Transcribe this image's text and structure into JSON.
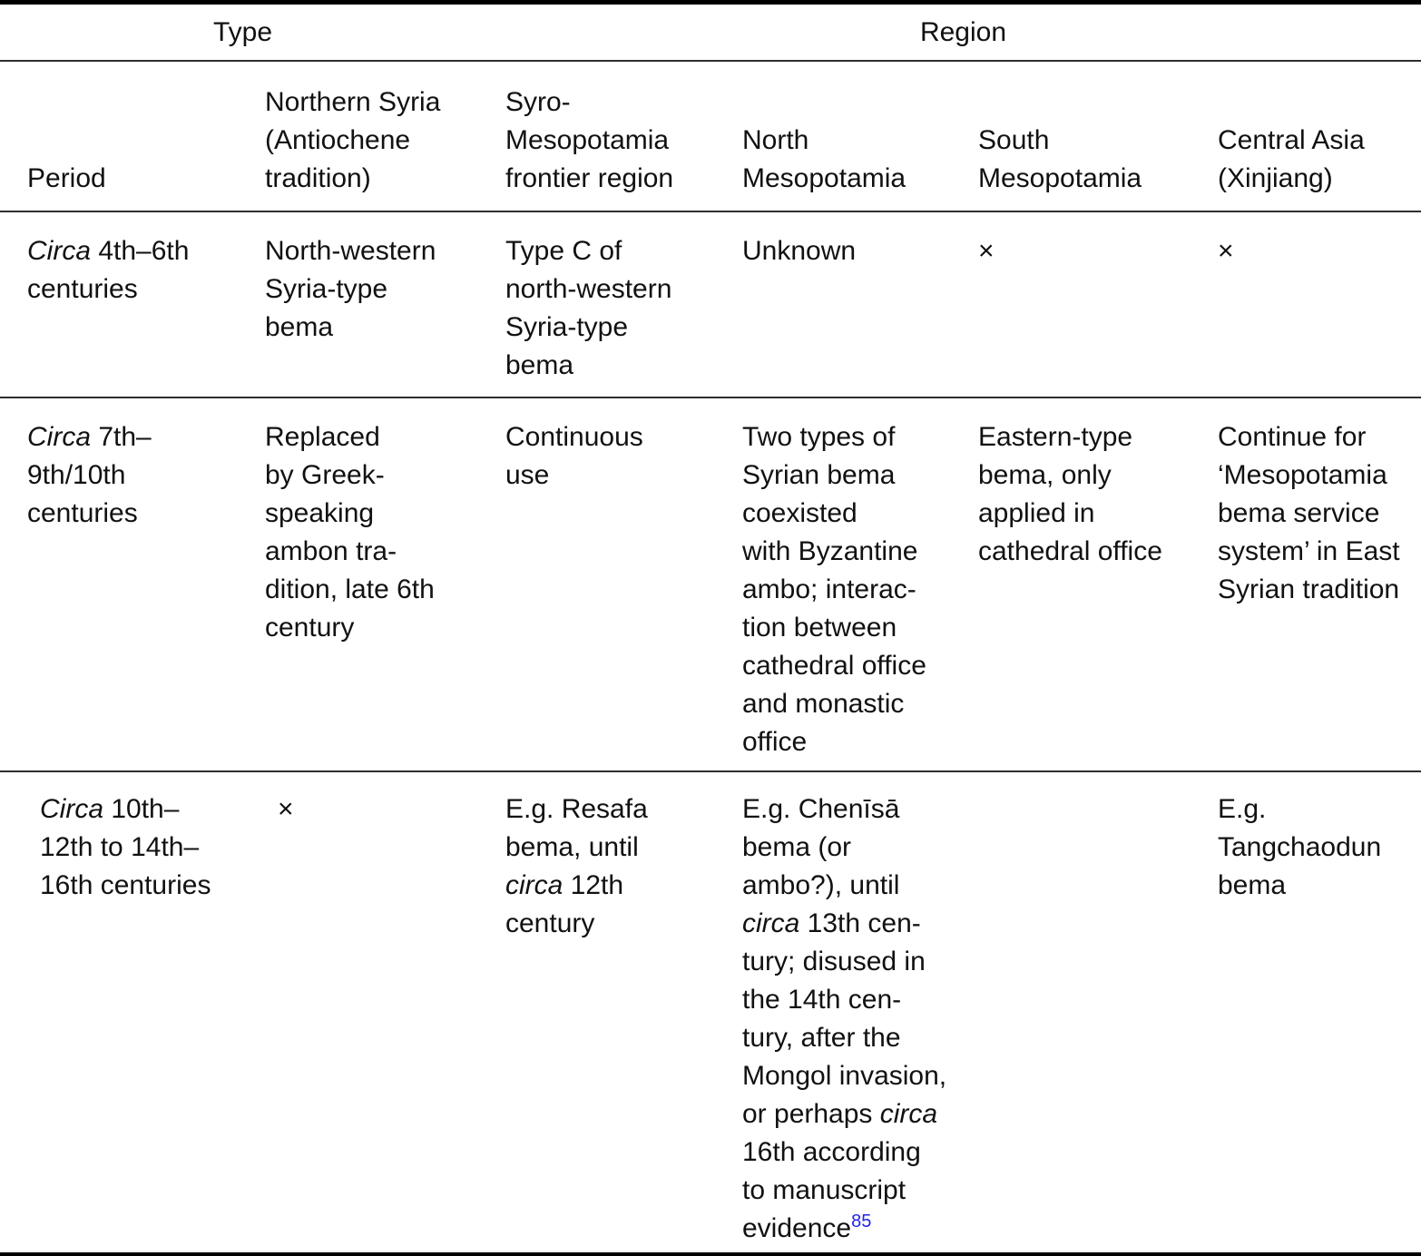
{
  "colors": {
    "text": "#111111",
    "rule_thick": "#000000",
    "rule_thin": "#2e2e2e",
    "footnote_ref": "#2222ee",
    "background": "#ffffff"
  },
  "group_header": {
    "type_label": "Type",
    "region_label": "Region"
  },
  "columns": [
    {
      "id": "period",
      "header_lines": [
        "Period"
      ]
    },
    {
      "id": "northern-syria",
      "header_lines": [
        "Northern Syria",
        "(Antiochene",
        "tradition)"
      ]
    },
    {
      "id": "syro-mesopotamia",
      "header_lines": [
        "Syro-",
        "Mesopotamia",
        "frontier region"
      ]
    },
    {
      "id": "north-mesopotamia",
      "header_lines": [
        "North",
        "Mesopotamia"
      ]
    },
    {
      "id": "south-mesopotamia",
      "header_lines": [
        "South",
        "Mesopotamia"
      ]
    },
    {
      "id": "central-asia",
      "header_lines": [
        "Central Asia",
        "(Xinjiang)"
      ]
    }
  ],
  "rows": [
    {
      "cells": [
        {
          "lines": [
            [
              {
                "t": "Circa",
                "i": true
              },
              " 4th–6th"
            ],
            [
              "centuries"
            ]
          ]
        },
        {
          "lines": [
            [
              "North-western"
            ],
            [
              "Syria-type"
            ],
            [
              "bema"
            ]
          ]
        },
        {
          "lines": [
            [
              "Type C of"
            ],
            [
              "north-western"
            ],
            [
              "Syria-type"
            ],
            [
              "bema"
            ]
          ]
        },
        {
          "lines": [
            [
              "Unknown"
            ]
          ]
        },
        {
          "lines": [
            [
              "×"
            ]
          ]
        },
        {
          "lines": [
            [
              "×"
            ]
          ]
        }
      ]
    },
    {
      "cells": [
        {
          "lines": [
            [
              {
                "t": "Circa",
                "i": true
              },
              " 7th–"
            ],
            [
              "9th/10th"
            ],
            [
              "centuries"
            ]
          ]
        },
        {
          "lines": [
            [
              "Replaced"
            ],
            [
              "by Greek-"
            ],
            [
              "speaking"
            ],
            [
              "ambon tra-"
            ],
            [
              "dition, late 6th"
            ],
            [
              "century"
            ]
          ]
        },
        {
          "lines": [
            [
              "Continuous"
            ],
            [
              "use"
            ]
          ]
        },
        {
          "lines": [
            [
              "Two types of"
            ],
            [
              "Syrian bema"
            ],
            [
              "coexisted"
            ],
            [
              "with Byzantine"
            ],
            [
              "ambo; interac-"
            ],
            [
              "tion between"
            ],
            [
              "cathedral office"
            ],
            [
              "and monastic"
            ],
            [
              "office"
            ]
          ]
        },
        {
          "lines": [
            [
              "Eastern-type"
            ],
            [
              "bema, only"
            ],
            [
              "applied in"
            ],
            [
              "cathedral office"
            ]
          ]
        },
        {
          "lines": [
            [
              "Continue for"
            ],
            [
              "‘Mesopotamia"
            ],
            [
              "bema service"
            ],
            [
              "system’ in East"
            ],
            [
              "Syrian tradition"
            ]
          ]
        }
      ]
    },
    {
      "cells": [
        {
          "lines": [
            [
              {
                "t": "Circa",
                "i": true
              },
              " 10th–"
            ],
            [
              "12th to 14th–"
            ],
            [
              "16th centuries"
            ]
          ]
        },
        {
          "lines": [
            [
              "×"
            ]
          ]
        },
        {
          "lines": [
            [
              "E.g. Resafa"
            ],
            [
              "bema, until"
            ],
            [
              {
                "t": "circa",
                "i": true
              },
              " 12th"
            ],
            [
              "century"
            ]
          ]
        },
        {
          "lines": [
            [
              "E.g. Chenīsā"
            ],
            [
              "bema (or"
            ],
            [
              "ambo?), until"
            ],
            [
              {
                "t": "circa",
                "i": true
              },
              " 13th cen-"
            ],
            [
              "tury; disused in"
            ],
            [
              "the 14th cen-"
            ],
            [
              "tury, after the"
            ],
            [
              "Mongol invasion,"
            ],
            [
              "or perhaps ",
              {
                "t": "circa",
                "i": true
              }
            ],
            [
              "16th according"
            ],
            [
              "to manuscript"
            ],
            [
              "evidence",
              {
                "t": "85",
                "sup": true
              }
            ]
          ]
        },
        {
          "lines": []
        },
        {
          "lines": [
            [
              "E.g."
            ],
            [
              "Tangchaodun"
            ],
            [
              "bema"
            ]
          ]
        }
      ]
    }
  ]
}
